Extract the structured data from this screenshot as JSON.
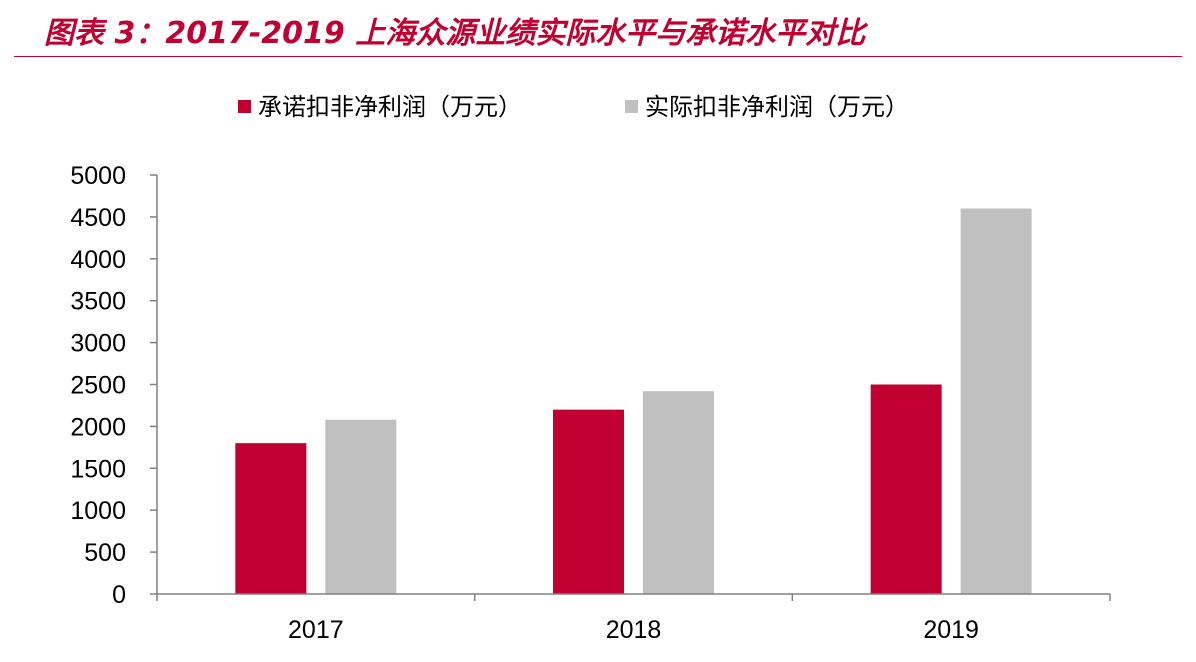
{
  "figure_title": "图表 3：2017-2019 上海众源业绩实际水平与承诺水平对比",
  "colors": {
    "accent": "#c00030",
    "promised": "#c00030",
    "actual": "#c0c0c0",
    "axis": "#808080"
  },
  "chart_data": {
    "type": "bar",
    "categories": [
      "2017",
      "2018",
      "2019"
    ],
    "series": [
      {
        "name": "承诺扣非净利润（万元）",
        "values": [
          1800,
          2200,
          2500
        ],
        "color": "#c00030"
      },
      {
        "name": "实际扣非净利润（万元）",
        "values": [
          2080,
          2420,
          4600
        ],
        "color": "#c0c0c0"
      }
    ],
    "title": "",
    "xlabel": "",
    "ylabel": "",
    "ylim": [
      0,
      5000
    ],
    "yticks": [
      "0",
      "500",
      "1000",
      "1500",
      "2000",
      "2500",
      "3000",
      "3500",
      "4000",
      "4500",
      "5000"
    ],
    "grid": false,
    "legend_position": "top"
  }
}
